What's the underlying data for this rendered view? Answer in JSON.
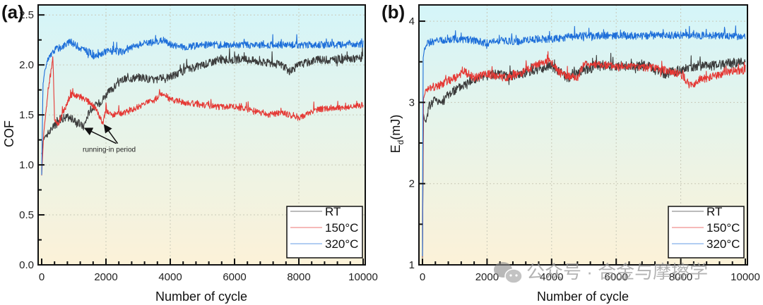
{
  "watermark": {
    "text": "公众号 · 合金与摩擦学",
    "icon": "wechat-icon"
  },
  "chart_data": [
    {
      "panel_label": "(a)",
      "type": "line",
      "xlabel": "Number of cycle",
      "ylabel": "COF",
      "xlim": [
        0,
        10000
      ],
      "ylim": [
        0,
        2.6
      ],
      "xticks": [
        0,
        2000,
        4000,
        6000,
        8000,
        10000
      ],
      "xtick_labels": [
        "0",
        "2000",
        "4000",
        "6000",
        "8000",
        "10000"
      ],
      "yticks": [
        0,
        0.5,
        1.0,
        1.5,
        2.0,
        2.5
      ],
      "ytick_labels": [
        "0.0",
        "0.5",
        "1.0",
        "1.5",
        "2.0",
        "2.5"
      ],
      "grid": true,
      "background": {
        "top": "#d4f5f9",
        "bottom": "#fcf2d8"
      },
      "legend_position": "bottom-right",
      "annotation": {
        "text": "running-in period",
        "points_to": [
          [
            1300,
            1.38
          ],
          [
            1950,
            1.42
          ]
        ],
        "text_at": [
          2100,
          1.2
        ]
      },
      "series": [
        {
          "name": "RT",
          "color": "#3b3b3b",
          "x": [
            0,
            50,
            100,
            300,
            500,
            800,
            1000,
            1300,
            1500,
            1800,
            2000,
            2500,
            3000,
            3500,
            4000,
            4500,
            5000,
            5500,
            6000,
            6500,
            7000,
            7500,
            7700,
            8000,
            8500,
            9000,
            9500,
            10000
          ],
          "y": [
            1.1,
            1.25,
            1.28,
            1.35,
            1.45,
            1.48,
            1.45,
            1.38,
            1.55,
            1.62,
            1.7,
            1.85,
            1.88,
            1.85,
            1.88,
            1.95,
            2.0,
            2.05,
            2.05,
            2.05,
            2.02,
            2.0,
            1.93,
            2.0,
            2.05,
            2.05,
            2.06,
            2.07
          ],
          "noise": 0.04
        },
        {
          "name": "150°C",
          "color": "#e53935",
          "x": [
            0,
            60,
            120,
            200,
            300,
            350,
            400,
            500,
            700,
            900,
            1200,
            1500,
            1700,
            1900,
            2000,
            2200,
            2600,
            3000,
            3500,
            3800,
            4000,
            4500,
            5000,
            5500,
            6000,
            6500,
            7000,
            7500,
            8000,
            8500,
            9000,
            9500,
            10000
          ],
          "y": [
            0.9,
            1.3,
            1.5,
            1.75,
            1.95,
            2.08,
            1.45,
            1.4,
            1.55,
            1.7,
            1.68,
            1.62,
            1.55,
            1.42,
            1.55,
            1.5,
            1.52,
            1.58,
            1.65,
            1.72,
            1.65,
            1.62,
            1.6,
            1.58,
            1.58,
            1.55,
            1.5,
            1.52,
            1.47,
            1.55,
            1.57,
            1.57,
            1.6
          ],
          "noise": 0.03
        },
        {
          "name": "320°C",
          "color": "#1e6fd9",
          "x": [
            0,
            40,
            100,
            200,
            300,
            400,
            600,
            900,
            1200,
            1500,
            1700,
            2000,
            2500,
            3000,
            3500,
            3800,
            4000,
            4500,
            5000,
            6000,
            7000,
            8000,
            9000,
            10000
          ],
          "y": [
            0.9,
            1.8,
            1.95,
            2.05,
            2.1,
            2.15,
            2.18,
            2.23,
            2.17,
            2.12,
            2.08,
            2.14,
            2.13,
            2.2,
            2.23,
            2.25,
            2.2,
            2.18,
            2.2,
            2.2,
            2.2,
            2.2,
            2.2,
            2.21
          ],
          "noise": 0.035
        }
      ]
    },
    {
      "panel_label": "(b)",
      "type": "line",
      "xlabel": "Number of cycle",
      "ylabel": "E_d(mJ)",
      "ylabel_main": "E",
      "ylabel_sub": "d",
      "ylabel_suffix": "(mJ)",
      "xlim": [
        0,
        10000
      ],
      "ylim": [
        1,
        4.2
      ],
      "xticks": [
        0,
        2000,
        4000,
        6000,
        8000,
        10000
      ],
      "xtick_labels": [
        "0",
        "2000",
        "4000",
        "6000",
        "8000",
        "10000"
      ],
      "yticks": [
        1,
        2,
        3,
        4
      ],
      "ytick_labels": [
        "1",
        "2",
        "3",
        "4"
      ],
      "grid": true,
      "background": {
        "top": "#d4f5f9",
        "bottom": "#fcf2d8"
      },
      "legend_position": "bottom-right",
      "series": [
        {
          "name": "RT",
          "color": "#3b3b3b",
          "x": [
            0,
            30,
            100,
            200,
            400,
            600,
            800,
            1000,
            1400,
            1800,
            2200,
            2600,
            3000,
            3500,
            4000,
            4500,
            5000,
            5500,
            6000,
            7000,
            7500,
            8000,
            8500,
            9000,
            9500,
            10000
          ],
          "y": [
            1.1,
            2.85,
            2.75,
            2.95,
            3.05,
            3.0,
            3.1,
            3.15,
            3.25,
            3.3,
            3.35,
            3.32,
            3.35,
            3.4,
            3.45,
            3.3,
            3.4,
            3.45,
            3.45,
            3.45,
            3.35,
            3.4,
            3.45,
            3.45,
            3.48,
            3.5
          ],
          "noise": 0.06
        },
        {
          "name": "150°C",
          "color": "#e53935",
          "x": [
            0,
            30,
            100,
            300,
            500,
            700,
            1000,
            1300,
            1600,
            2000,
            2500,
            3000,
            3500,
            3900,
            4300,
            4800,
            5000,
            6000,
            7000,
            7500,
            8000,
            8300,
            8600,
            9000,
            9500,
            10000
          ],
          "y": [
            1.1,
            3.05,
            3.15,
            3.18,
            3.2,
            3.25,
            3.3,
            3.38,
            3.3,
            3.35,
            3.3,
            3.35,
            3.45,
            3.52,
            3.35,
            3.3,
            3.48,
            3.45,
            3.43,
            3.4,
            3.35,
            3.2,
            3.28,
            3.32,
            3.38,
            3.4
          ],
          "noise": 0.05
        },
        {
          "name": "320°C",
          "color": "#1e6fd9",
          "x": [
            0,
            20,
            60,
            150,
            300,
            600,
            1000,
            1500,
            2000,
            2500,
            3000,
            3500,
            4000,
            4500,
            5000,
            6000,
            7000,
            8000,
            9000,
            9500,
            10000
          ],
          "y": [
            1.1,
            3.55,
            3.65,
            3.72,
            3.75,
            3.76,
            3.78,
            3.77,
            3.73,
            3.76,
            3.75,
            3.78,
            3.78,
            3.8,
            3.82,
            3.82,
            3.82,
            3.83,
            3.82,
            3.82,
            3.8
          ],
          "noise": 0.045
        }
      ]
    }
  ]
}
